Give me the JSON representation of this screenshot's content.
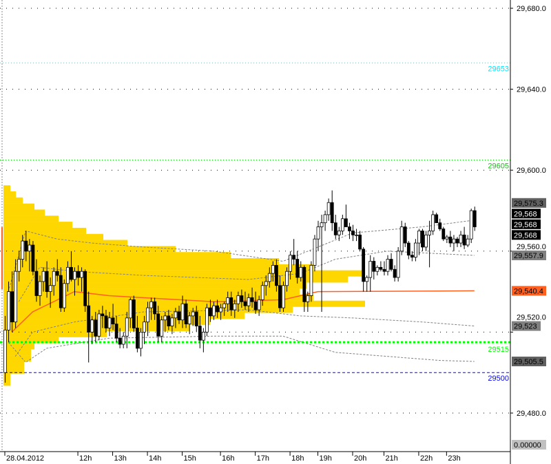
{
  "chart_data": {
    "type": "candlestick",
    "ylim": [
      29470,
      29684
    ],
    "y_ticks": [
      "29,680.0",
      "29,640.0",
      "29,600.0",
      "29,560.0",
      "29,520.0",
      "29,480.0"
    ],
    "y_tick_values": [
      29680,
      29640,
      29600,
      29560,
      29520,
      29480
    ],
    "x_ticks": [
      {
        "label": "28.04.2012",
        "bar": 0
      },
      {
        "label": "12h",
        "bar": 21
      },
      {
        "label": "13h",
        "bar": 31
      },
      {
        "label": "14h",
        "bar": 41
      },
      {
        "label": "15h",
        "bar": 51
      },
      {
        "label": "16h",
        "bar": 62
      },
      {
        "label": "17h",
        "bar": 72
      },
      {
        "label": "18h",
        "bar": 82
      },
      {
        "label": "19h",
        "bar": 90
      },
      {
        "label": "20h",
        "bar": 100
      },
      {
        "label": "21h",
        "bar": 109
      },
      {
        "label": "22h",
        "bar": 119
      },
      {
        "label": "23h",
        "bar": 127
      }
    ],
    "grid": "dotted horizontal",
    "ohlc": [
      [
        29500,
        29528,
        29495,
        29521
      ],
      [
        29521,
        29545,
        29515,
        29540
      ],
      [
        29540,
        29550,
        29520,
        29525
      ],
      [
        29525,
        29556,
        29522,
        29550
      ],
      [
        29550,
        29560,
        29545,
        29556
      ],
      [
        29556,
        29568,
        29552,
        29565
      ],
      [
        29565,
        29570,
        29555,
        29560
      ],
      [
        29560,
        29566,
        29550,
        29563
      ],
      [
        29563,
        29565,
        29548,
        29550
      ],
      [
        29550,
        29556,
        29535,
        29538
      ],
      [
        29538,
        29548,
        29533,
        29545
      ],
      [
        29545,
        29552,
        29540,
        29550
      ],
      [
        29550,
        29555,
        29537,
        29540
      ],
      [
        29540,
        29547,
        29532,
        29543
      ],
      [
        29543,
        29552,
        29538,
        29550
      ],
      [
        29550,
        29556,
        29545,
        29548
      ],
      [
        29548,
        29552,
        29530,
        29532
      ],
      [
        29532,
        29546,
        29530,
        29544
      ],
      [
        29544,
        29555,
        29540,
        29552
      ],
      [
        29552,
        29560,
        29545,
        29546
      ],
      [
        29546,
        29552,
        29538,
        29550
      ],
      [
        29550,
        29553,
        29543,
        29547
      ],
      [
        29547,
        29552,
        29540,
        29550
      ],
      [
        29550,
        29551,
        29530,
        29533
      ],
      [
        29533,
        29540,
        29505,
        29520
      ],
      [
        29520,
        29528,
        29514,
        29526
      ],
      [
        29526,
        29530,
        29515,
        29518
      ],
      [
        29518,
        29531,
        29516,
        29529
      ],
      [
        29529,
        29533,
        29522,
        29528
      ],
      [
        29528,
        29531,
        29520,
        29522
      ],
      [
        29522,
        29530,
        29518,
        29527
      ],
      [
        29527,
        29534,
        29521,
        29524
      ],
      [
        29524,
        29528,
        29515,
        29517
      ],
      [
        29517,
        29522,
        29512,
        29514
      ],
      [
        29514,
        29520,
        29512,
        29518
      ],
      [
        29518,
        29530,
        29512,
        29527
      ],
      [
        29527,
        29537,
        29522,
        29536
      ],
      [
        29536,
        29538,
        29520,
        29522
      ],
      [
        29522,
        29528,
        29510,
        29512
      ],
      [
        29512,
        29522,
        29508,
        29520
      ],
      [
        29520,
        29528,
        29514,
        29525
      ],
      [
        29525,
        29535,
        29518,
        29532
      ],
      [
        29532,
        29537,
        29526,
        29535
      ],
      [
        29535,
        29537,
        29526,
        29529
      ],
      [
        29529,
        29533,
        29515,
        29518
      ],
      [
        29518,
        29528,
        29515,
        29526
      ],
      [
        29526,
        29530,
        29520,
        29528
      ],
      [
        29528,
        29531,
        29521,
        29523
      ],
      [
        29523,
        29529,
        29519,
        29527
      ],
      [
        29527,
        29532,
        29522,
        29530
      ],
      [
        29530,
        29533,
        29524,
        29526
      ],
      [
        29526,
        29538,
        29522,
        29534
      ],
      [
        29534,
        29536,
        29522,
        29524
      ],
      [
        29524,
        29530,
        29519,
        29528
      ],
      [
        29528,
        29532,
        29523,
        29530
      ],
      [
        29530,
        29533,
        29520,
        29523
      ],
      [
        29523,
        29528,
        29512,
        29516
      ],
      [
        29516,
        29522,
        29510,
        29520
      ],
      [
        29520,
        29534,
        29518,
        29532
      ],
      [
        29532,
        29536,
        29525,
        29528
      ],
      [
        29528,
        29535,
        29526,
        29533
      ],
      [
        29533,
        29536,
        29527,
        29530
      ],
      [
        29530,
        29534,
        29526,
        29532
      ],
      [
        29532,
        29535,
        29528,
        29534
      ],
      [
        29534,
        29540,
        29530,
        29537
      ],
      [
        29537,
        29540,
        29528,
        29531
      ],
      [
        29531,
        29536,
        29527,
        29534
      ],
      [
        29534,
        29540,
        29530,
        29538
      ],
      [
        29538,
        29541,
        29532,
        29535
      ],
      [
        29535,
        29540,
        29531,
        29533
      ],
      [
        29533,
        29539,
        29530,
        29537
      ],
      [
        29537,
        29542,
        29532,
        29535
      ],
      [
        29535,
        29540,
        29529,
        29531
      ],
      [
        29531,
        29538,
        29528,
        29536
      ],
      [
        29536,
        29545,
        29533,
        29543
      ],
      [
        29543,
        29548,
        29538,
        29545
      ],
      [
        29545,
        29552,
        29542,
        29549
      ],
      [
        29549,
        29555,
        29545,
        29553
      ],
      [
        29553,
        29556,
        29540,
        29543
      ],
      [
        29543,
        29548,
        29530,
        29532
      ],
      [
        29532,
        29545,
        29530,
        29543
      ],
      [
        29543,
        29552,
        29540,
        29550
      ],
      [
        29550,
        29560,
        29546,
        29558
      ],
      [
        29558,
        29566,
        29553,
        29556
      ],
      [
        29556,
        29560,
        29544,
        29547
      ],
      [
        29547,
        29555,
        29545,
        29552
      ],
      [
        29552,
        29553,
        29530,
        29535
      ],
      [
        29535,
        29540,
        29530,
        29538
      ],
      [
        29538,
        29555,
        29535,
        29553
      ],
      [
        29553,
        29568,
        29550,
        29566
      ],
      [
        29566,
        29575,
        29560,
        29572
      ],
      [
        29572,
        29578,
        29530,
        29574
      ],
      [
        29574,
        29580,
        29570,
        29578
      ],
      [
        29578,
        29586,
        29575,
        29584
      ],
      [
        29584,
        29590,
        29570,
        29574
      ],
      [
        29574,
        29578,
        29566,
        29568
      ],
      [
        29568,
        29572,
        29565,
        29570
      ],
      [
        29570,
        29578,
        29568,
        29576
      ],
      [
        29576,
        29583,
        29572,
        29572
      ],
      [
        29572,
        29574,
        29566,
        29570
      ],
      [
        29570,
        29573,
        29565,
        29568
      ],
      [
        29568,
        29571,
        29565,
        29568
      ],
      [
        29568,
        29570,
        29560,
        29561
      ],
      [
        29561,
        29562,
        29540,
        29545
      ],
      [
        29545,
        29548,
        29540,
        29547
      ],
      [
        29547,
        29558,
        29540,
        29555
      ],
      [
        29555,
        29557,
        29546,
        29550
      ],
      [
        29550,
        29553,
        29548,
        29552
      ],
      [
        29552,
        29555,
        29550,
        29551
      ],
      [
        29551,
        29555,
        29548,
        29550
      ],
      [
        29550,
        29558,
        29548,
        29556
      ],
      [
        29556,
        29559,
        29550,
        29551
      ],
      [
        29551,
        29553,
        29545,
        29547
      ],
      [
        29547,
        29562,
        29545,
        29560
      ],
      [
        29560,
        29575,
        29558,
        29572
      ],
      [
        29572,
        29574,
        29562,
        29564
      ],
      [
        29564,
        29565,
        29556,
        29558
      ],
      [
        29558,
        29560,
        29555,
        29557
      ],
      [
        29557,
        29566,
        29555,
        29564
      ],
      [
        29564,
        29571,
        29558,
        29570
      ],
      [
        29570,
        29571,
        29560,
        29562
      ],
      [
        29562,
        29570,
        29560,
        29568
      ],
      [
        29568,
        29575,
        29552,
        29570
      ],
      [
        29570,
        29580,
        29568,
        29578
      ],
      [
        29578,
        29579,
        29574,
        29574
      ],
      [
        29574,
        29576,
        29570,
        29571
      ],
      [
        29571,
        29572,
        29565,
        29566
      ],
      [
        29566,
        29568,
        29564,
        29567
      ],
      [
        29567,
        29570,
        29562,
        29564
      ],
      [
        29564,
        29568,
        29560,
        29566
      ],
      [
        29566,
        29567,
        29562,
        29564
      ],
      [
        29564,
        29570,
        29562,
        29568
      ],
      [
        29568,
        29572,
        29561,
        29563
      ],
      [
        29563,
        29568,
        29562,
        29566
      ],
      [
        29566,
        29581,
        29564,
        29580
      ],
      [
        29580,
        29582,
        29570,
        29572
      ]
    ],
    "volume_profile": [
      [
        29591,
        10
      ],
      [
        29588,
        18
      ],
      [
        29585,
        28
      ],
      [
        29582,
        45
      ],
      [
        29579,
        60
      ],
      [
        29576,
        80
      ],
      [
        29573,
        100
      ],
      [
        29570,
        120
      ],
      [
        29567,
        145
      ],
      [
        29564,
        180
      ],
      [
        29561,
        250
      ],
      [
        29558,
        330
      ],
      [
        29555,
        400
      ],
      [
        29552,
        450
      ],
      [
        29549,
        520
      ],
      [
        29546,
        500
      ],
      [
        29543,
        440
      ],
      [
        29540,
        430
      ],
      [
        29537,
        450
      ],
      [
        29534,
        525
      ],
      [
        29531,
        420
      ],
      [
        29528,
        350
      ],
      [
        29525,
        300
      ],
      [
        29522,
        270
      ],
      [
        29519,
        150
      ],
      [
        29516,
        80
      ],
      [
        29513,
        45
      ],
      [
        29510,
        40
      ],
      [
        29507,
        40
      ],
      [
        29504,
        30
      ],
      [
        29501,
        30
      ],
      [
        29498,
        10
      ],
      [
        29495,
        10
      ]
    ],
    "vwap": [
      [
        2,
        29520
      ],
      [
        8,
        29530
      ],
      [
        20,
        29540
      ],
      [
        30,
        29538
      ],
      [
        60,
        29535
      ],
      [
        80,
        29536
      ],
      [
        90,
        29540
      ],
      [
        135,
        29540.4
      ]
    ],
    "band_upper": [
      [
        1,
        29540
      ],
      [
        6,
        29570
      ],
      [
        15,
        29566
      ],
      [
        25,
        29564
      ],
      [
        40,
        29562
      ],
      [
        60,
        29560
      ],
      [
        80,
        29555
      ],
      [
        90,
        29562
      ],
      [
        100,
        29569
      ],
      [
        120,
        29572
      ],
      [
        135,
        29575.3
      ]
    ],
    "band_mid": [
      [
        4,
        29535
      ],
      [
        10,
        29552
      ],
      [
        20,
        29550
      ],
      [
        40,
        29548
      ],
      [
        70,
        29546
      ],
      [
        85,
        29549
      ],
      [
        95,
        29556
      ],
      [
        110,
        29560
      ],
      [
        135,
        29557.9
      ]
    ],
    "band_lower": [
      [
        3,
        29508
      ],
      [
        8,
        29520
      ],
      [
        20,
        29525
      ],
      [
        40,
        29530
      ],
      [
        70,
        29531
      ],
      [
        85,
        29528
      ],
      [
        100,
        29527
      ],
      [
        120,
        29525
      ],
      [
        135,
        29523
      ]
    ],
    "band_lowest": [
      [
        1,
        29515
      ],
      [
        6,
        29505
      ],
      [
        12,
        29512
      ],
      [
        30,
        29517
      ],
      [
        60,
        29518
      ],
      [
        80,
        29518
      ],
      [
        95,
        29510
      ],
      [
        110,
        29508
      ],
      [
        125,
        29506
      ],
      [
        135,
        29505.5
      ]
    ],
    "levels": [
      {
        "label": "29653",
        "value": 29653,
        "color": "#00e5ff",
        "style": "dotted"
      },
      {
        "label": "29605",
        "value": 29605,
        "color": "#00cc00",
        "style": "dotted"
      },
      {
        "label": "29515",
        "value": 29515,
        "color": "#00ff00",
        "style": "thick-dotted"
      },
      {
        "label": "29500",
        "value": 29500,
        "color": "#0000ff",
        "style": "dashed"
      }
    ],
    "price_labels": [
      {
        "label": "29,575.3",
        "value": 29575.3,
        "bg": "#606060",
        "fg": "#000000"
      },
      {
        "label": "29,568",
        "value": 29568,
        "bg": "#000000",
        "fg": "#ffffff",
        "slot": 0
      },
      {
        "label": "29,568",
        "value": 29568,
        "bg": "#000000",
        "fg": "#ffffff",
        "slot": 1
      },
      {
        "label": "29,568",
        "value": 29568,
        "bg": "#000000",
        "fg": "#ffffff",
        "slot": 2
      },
      {
        "label": "29,557.9",
        "value": 29557.9,
        "bg": "#808080",
        "fg": "#000000"
      },
      {
        "label": "29,540.4",
        "value": 29540.4,
        "bg": "#ff6020",
        "fg": "#000000"
      },
      {
        "label": "29,523",
        "value": 29523,
        "bg": "#808080",
        "fg": "#000000"
      },
      {
        "label": "29,505.5",
        "value": 29505.5,
        "bg": "#606060",
        "fg": "#000000"
      }
    ],
    "indicator_value": "0.00000",
    "colors": {
      "profile": "#ffd700",
      "vwap": "#ff6020",
      "bands": "#808080",
      "bull": "#ffffff",
      "bear": "#000000"
    }
  }
}
